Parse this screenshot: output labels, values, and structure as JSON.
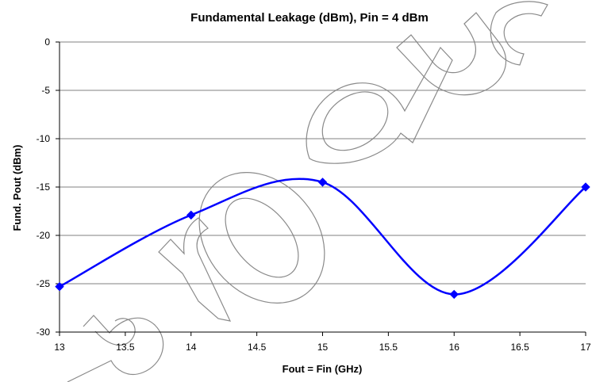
{
  "chart_data": {
    "type": "line",
    "title": "Fundamental Leakage (dBm), Pin = 4 dBm",
    "xlabel": "Fout = Fin (GHz)",
    "ylabel": "Fund. Pout (dBm)",
    "xlim": [
      13,
      17
    ],
    "ylim": [
      -30,
      0
    ],
    "x_ticks": [
      "13",
      "13.5",
      "14",
      "14.5",
      "15",
      "15.5",
      "16",
      "16.5",
      "17"
    ],
    "y_ticks": [
      "0",
      "-5",
      "-10",
      "-15",
      "-20",
      "-25",
      "-30"
    ],
    "grid": "horizontal",
    "legend": "none",
    "series": [
      {
        "x": [
          13,
          14,
          15,
          16,
          17
        ],
        "y": [
          -25.3,
          -17.9,
          -14.5,
          -26.1,
          -15.0
        ],
        "color": "#0000ff",
        "marker": "diamond",
        "smooth": true
      }
    ]
  },
  "watermark": {
    "text": "produc",
    "color": "#8a8a8a"
  }
}
